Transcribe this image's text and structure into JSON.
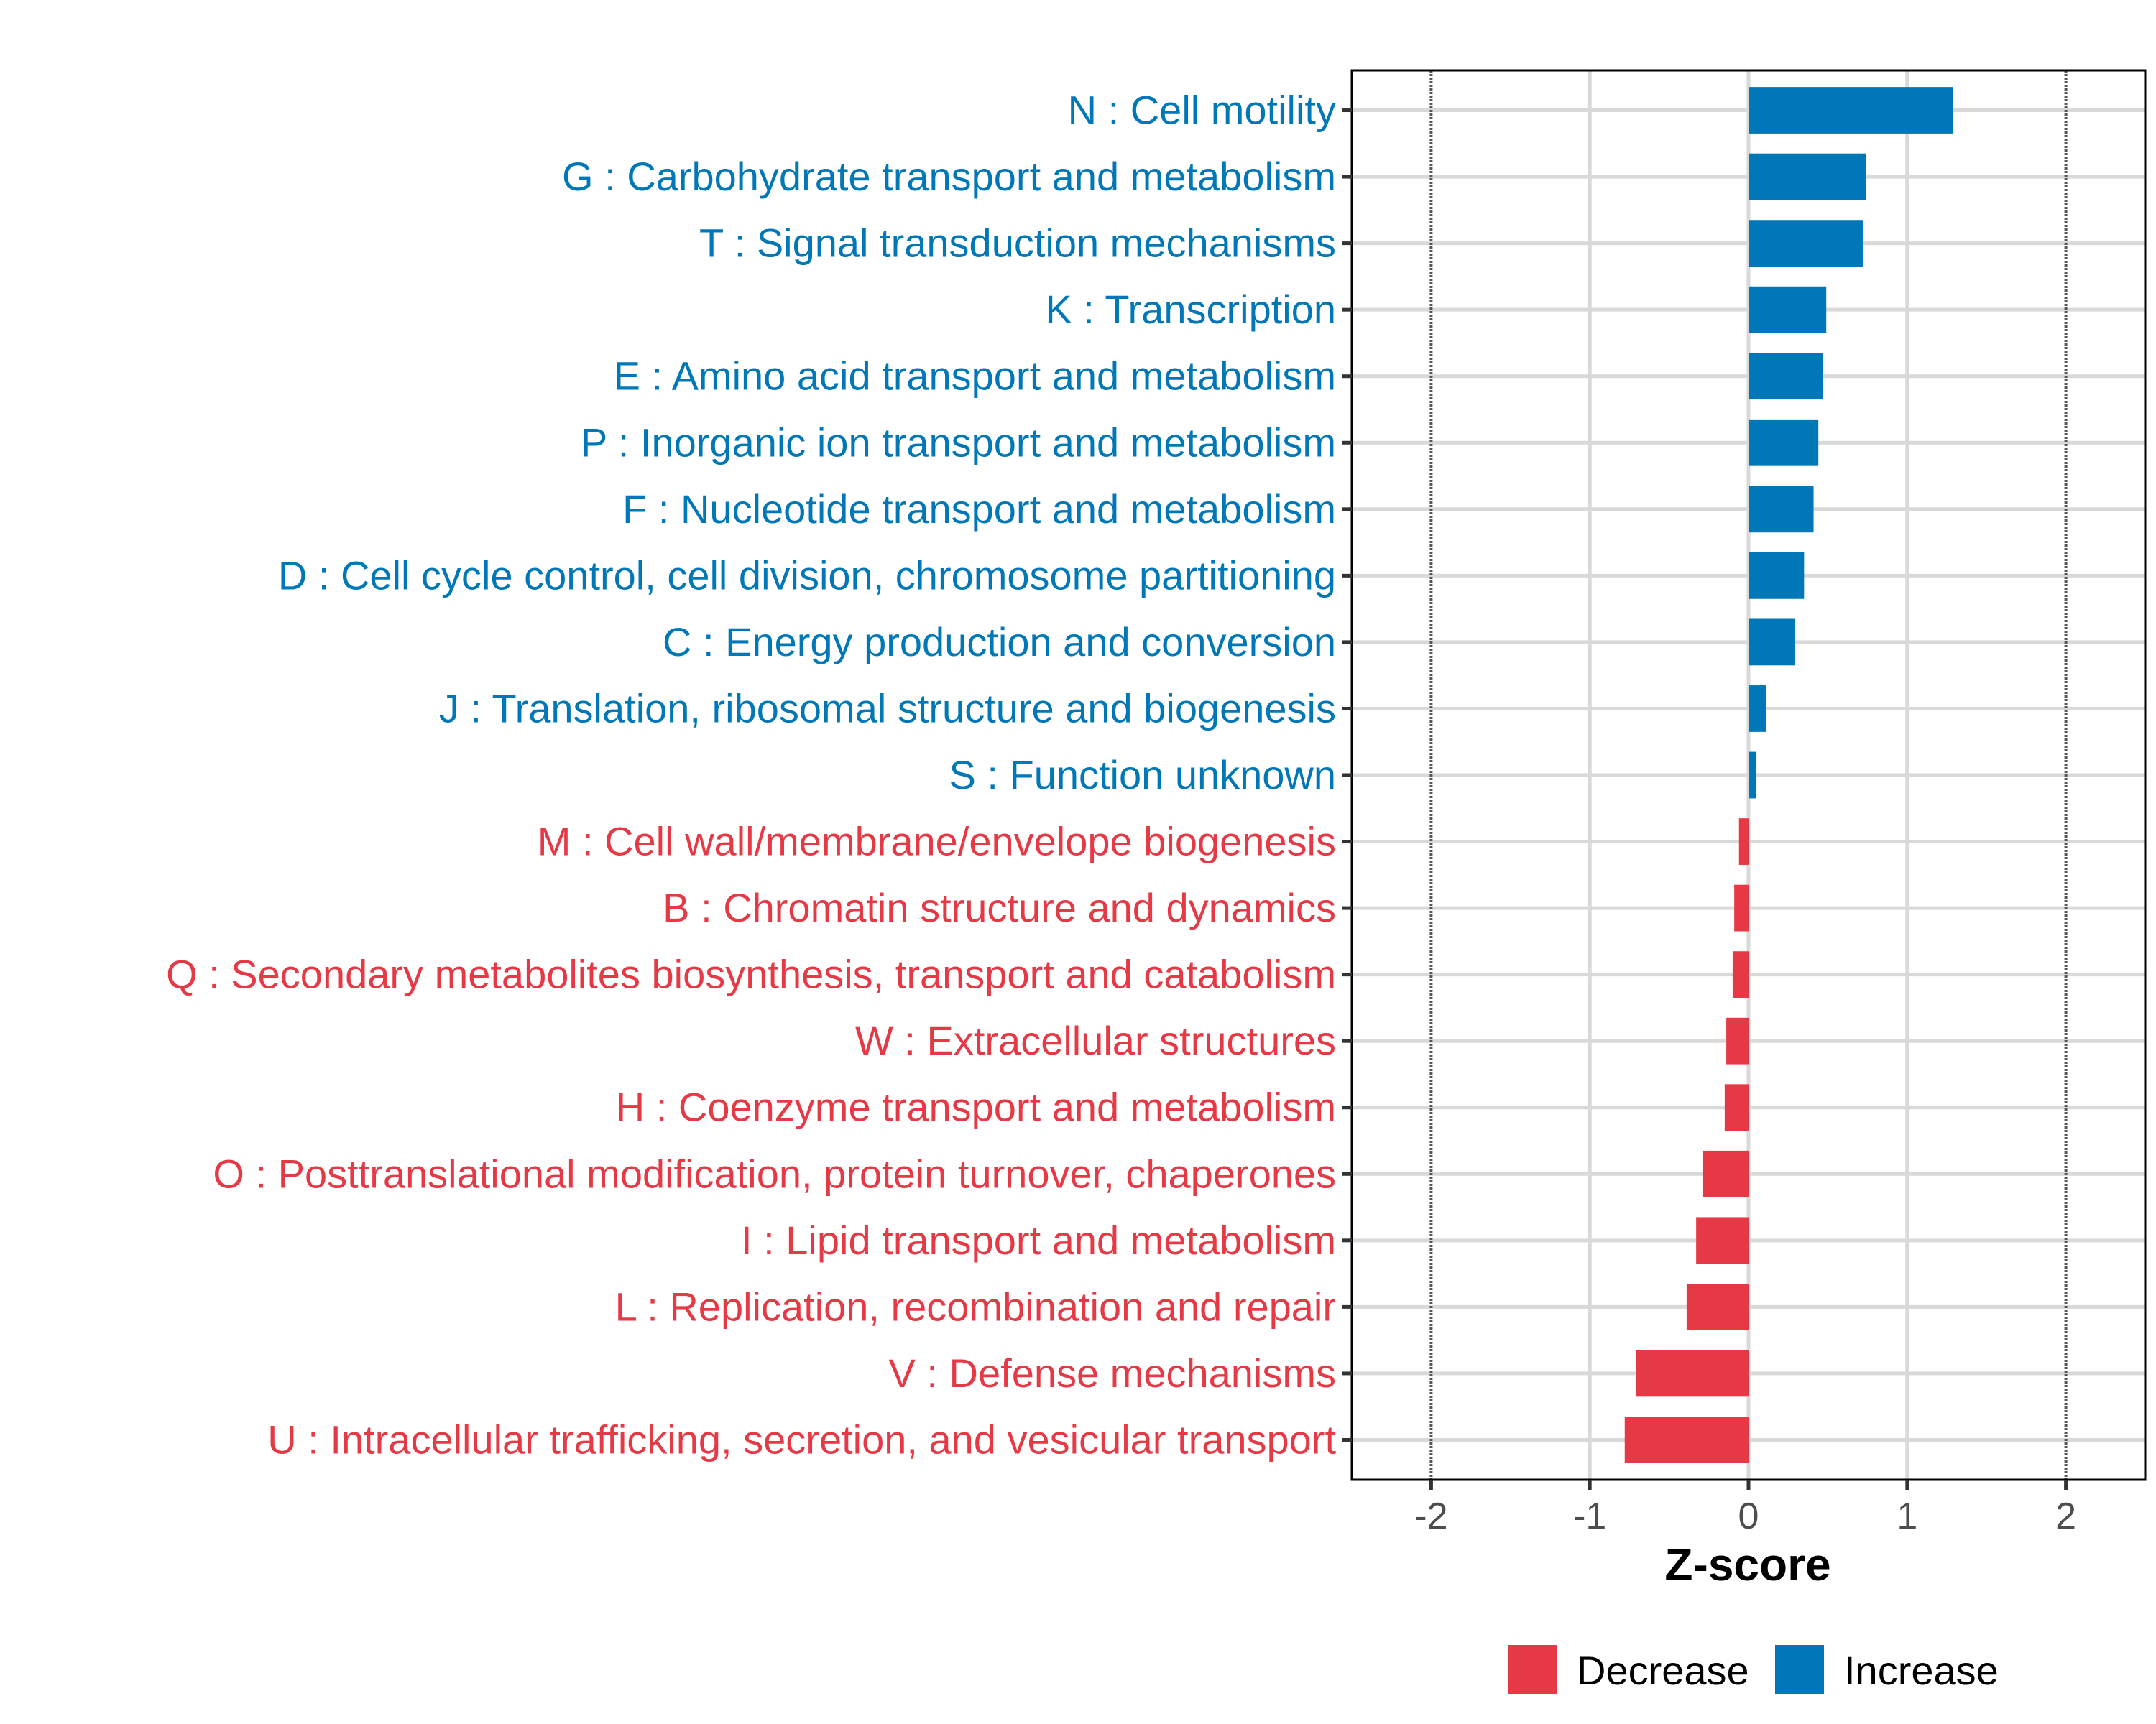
{
  "chart_data": {
    "type": "bar",
    "orientation": "horizontal",
    "title": "",
    "xlabel": "Z-score",
    "ylabel": "",
    "xlim": [
      -2.5,
      2.5
    ],
    "xticks": [
      -2,
      -1,
      0,
      1,
      2
    ],
    "xtick_labels": [
      "-2",
      "-1",
      "0",
      "1",
      "2"
    ],
    "reference_lines": [
      -2,
      2
    ],
    "grid": true,
    "legend_position": "bottom",
    "colors": {
      "Decrease": "#E63946",
      "Increase": "#0077B6"
    },
    "legend": [
      {
        "label": "Decrease",
        "color": "#E63946"
      },
      {
        "label": "Increase",
        "color": "#0077B6"
      }
    ],
    "categories": [
      "N : Cell motility",
      "G : Carbohydrate transport and metabolism",
      "T : Signal transduction mechanisms",
      "K : Transcription",
      "E : Amino acid transport and metabolism",
      "P : Inorganic ion transport and metabolism",
      "F : Nucleotide transport and metabolism",
      "D : Cell cycle control, cell division, chromosome partitioning",
      "C : Energy production and conversion",
      "J : Translation, ribosomal structure and biogenesis",
      "S : Function unknown",
      "M : Cell wall/membrane/envelope biogenesis",
      "B : Chromatin structure and dynamics",
      "Q : Secondary metabolites biosynthesis, transport and catabolism",
      "W : Extracellular structures",
      "H : Coenzyme transport and metabolism",
      "O : Posttranslational modification, protein turnover, chaperones",
      "I : Lipid transport and metabolism",
      "L : Replication, recombination and repair",
      "V : Defense mechanisms",
      "U : Intracellular trafficking, secretion, and vesicular transport"
    ],
    "values": [
      1.29,
      0.74,
      0.72,
      0.49,
      0.47,
      0.44,
      0.41,
      0.35,
      0.29,
      0.11,
      0.05,
      -0.06,
      -0.09,
      -0.1,
      -0.14,
      -0.15,
      -0.29,
      -0.33,
      -0.39,
      -0.71,
      -0.78
    ],
    "groups": [
      "Increase",
      "Increase",
      "Increase",
      "Increase",
      "Increase",
      "Increase",
      "Increase",
      "Increase",
      "Increase",
      "Increase",
      "Increase",
      "Decrease",
      "Decrease",
      "Decrease",
      "Decrease",
      "Decrease",
      "Decrease",
      "Decrease",
      "Decrease",
      "Decrease",
      "Decrease"
    ]
  }
}
